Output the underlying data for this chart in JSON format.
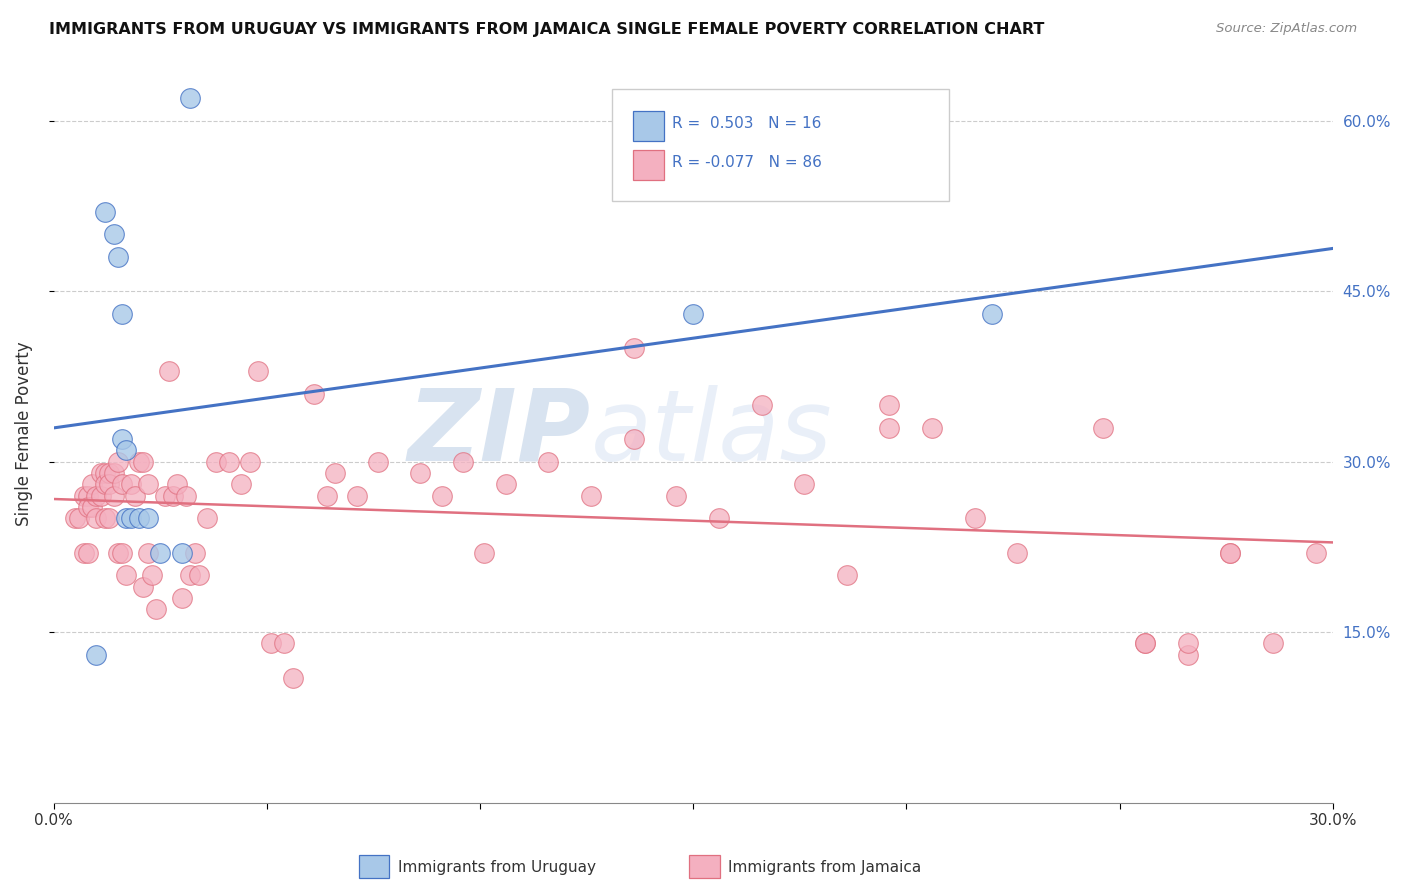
{
  "title": "IMMIGRANTS FROM URUGUAY VS IMMIGRANTS FROM JAMAICA SINGLE FEMALE POVERTY CORRELATION CHART",
  "source": "Source: ZipAtlas.com",
  "ylabel": "Single Female Poverty",
  "xlim": [
    0.0,
    0.3
  ],
  "ylim": [
    0.0,
    0.65
  ],
  "x_tick_positions": [
    0.0,
    0.05,
    0.1,
    0.15,
    0.2,
    0.25,
    0.3
  ],
  "x_tick_labels": [
    "0.0%",
    "",
    "",
    "",
    "",
    "",
    "30.0%"
  ],
  "y_ticks_right": [
    0.15,
    0.3,
    0.45,
    0.6
  ],
  "y_tick_labels_right": [
    "15.0%",
    "30.0%",
    "45.0%",
    "60.0%"
  ],
  "legend_r_uruguay": "0.503",
  "legend_n_uruguay": "16",
  "legend_r_jamaica": "-0.077",
  "legend_n_jamaica": "86",
  "color_uruguay": "#a8c8e8",
  "color_jamaica": "#f4b0c0",
  "line_color_uruguay": "#4472c4",
  "line_color_jamaica": "#e07080",
  "watermark_zip": "ZIP",
  "watermark_atlas": "atlas",
  "uruguay_x": [
    0.01,
    0.012,
    0.014,
    0.015,
    0.016,
    0.016,
    0.017,
    0.017,
    0.018,
    0.02,
    0.022,
    0.025,
    0.03,
    0.032,
    0.15,
    0.22
  ],
  "uruguay_y": [
    0.13,
    0.52,
    0.5,
    0.48,
    0.43,
    0.32,
    0.31,
    0.25,
    0.25,
    0.25,
    0.25,
    0.22,
    0.22,
    0.62,
    0.43,
    0.43
  ],
  "jamaica_x": [
    0.005,
    0.006,
    0.007,
    0.007,
    0.008,
    0.008,
    0.008,
    0.009,
    0.009,
    0.01,
    0.01,
    0.011,
    0.011,
    0.012,
    0.012,
    0.012,
    0.013,
    0.013,
    0.013,
    0.014,
    0.014,
    0.015,
    0.015,
    0.016,
    0.016,
    0.017,
    0.018,
    0.019,
    0.02,
    0.021,
    0.021,
    0.022,
    0.022,
    0.023,
    0.024,
    0.026,
    0.027,
    0.028,
    0.029,
    0.03,
    0.031,
    0.032,
    0.033,
    0.034,
    0.036,
    0.038,
    0.041,
    0.044,
    0.046,
    0.048,
    0.051,
    0.054,
    0.056,
    0.061,
    0.064,
    0.066,
    0.071,
    0.076,
    0.086,
    0.091,
    0.096,
    0.101,
    0.106,
    0.116,
    0.126,
    0.136,
    0.146,
    0.156,
    0.166,
    0.176,
    0.186,
    0.196,
    0.206,
    0.216,
    0.226,
    0.256,
    0.266,
    0.276,
    0.136,
    0.196,
    0.246,
    0.256,
    0.266,
    0.276,
    0.286,
    0.296
  ],
  "jamaica_y": [
    0.25,
    0.25,
    0.27,
    0.22,
    0.27,
    0.26,
    0.22,
    0.28,
    0.26,
    0.27,
    0.25,
    0.29,
    0.27,
    0.29,
    0.28,
    0.25,
    0.29,
    0.28,
    0.25,
    0.29,
    0.27,
    0.3,
    0.22,
    0.28,
    0.22,
    0.2,
    0.28,
    0.27,
    0.3,
    0.3,
    0.19,
    0.28,
    0.22,
    0.2,
    0.17,
    0.27,
    0.38,
    0.27,
    0.28,
    0.18,
    0.27,
    0.2,
    0.22,
    0.2,
    0.25,
    0.3,
    0.3,
    0.28,
    0.3,
    0.38,
    0.14,
    0.14,
    0.11,
    0.36,
    0.27,
    0.29,
    0.27,
    0.3,
    0.29,
    0.27,
    0.3,
    0.22,
    0.28,
    0.3,
    0.27,
    0.32,
    0.27,
    0.25,
    0.35,
    0.28,
    0.2,
    0.33,
    0.33,
    0.25,
    0.22,
    0.14,
    0.13,
    0.22,
    0.4,
    0.35,
    0.33,
    0.14,
    0.14,
    0.22,
    0.14,
    0.22
  ]
}
